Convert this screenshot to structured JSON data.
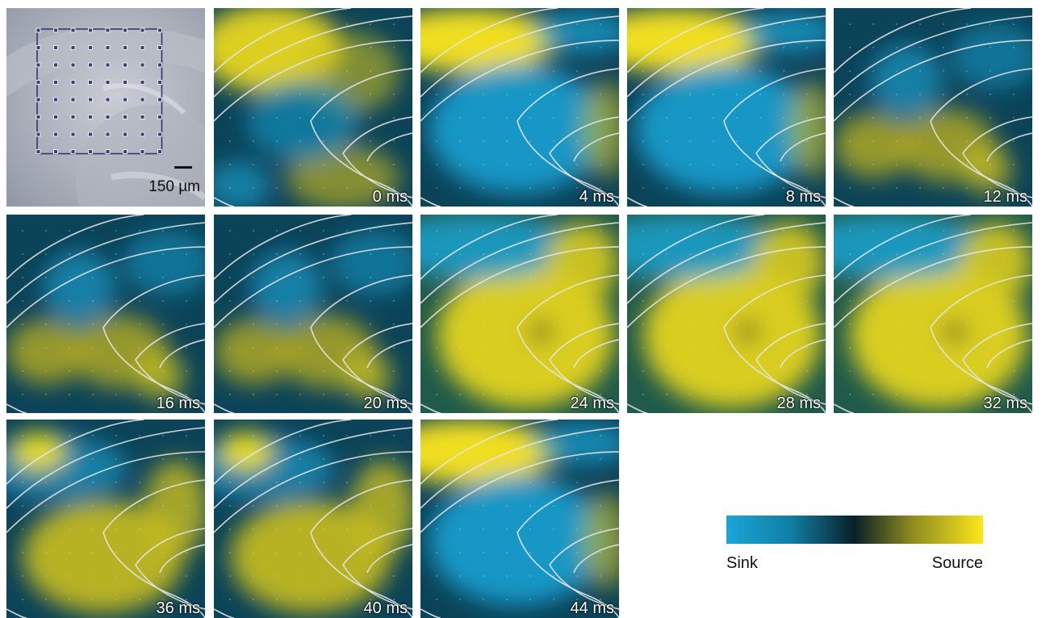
{
  "photo": {
    "scale_label": "150 µm"
  },
  "colors": {
    "sink": "#1aa6d8",
    "neutral": "#0a2530",
    "source": "#fde71a",
    "contour": "#e6e6e6"
  },
  "legend": {
    "low_label": "Sink",
    "high_label": "Source"
  },
  "frames": [
    {
      "label": "0 ms",
      "state": "early"
    },
    {
      "label": "4 ms",
      "state": "sink"
    },
    {
      "label": "8 ms",
      "state": "sink"
    },
    {
      "label": "12 ms",
      "state": "mixed"
    },
    {
      "label": "16 ms",
      "state": "mixed"
    },
    {
      "label": "20 ms",
      "state": "mixed"
    },
    {
      "label": "24 ms",
      "state": "source"
    },
    {
      "label": "28 ms",
      "state": "source"
    },
    {
      "label": "32 ms",
      "state": "source"
    },
    {
      "label": "36 ms",
      "state": "late"
    },
    {
      "label": "40 ms",
      "state": "late"
    },
    {
      "label": "44 ms",
      "state": "sink"
    }
  ]
}
